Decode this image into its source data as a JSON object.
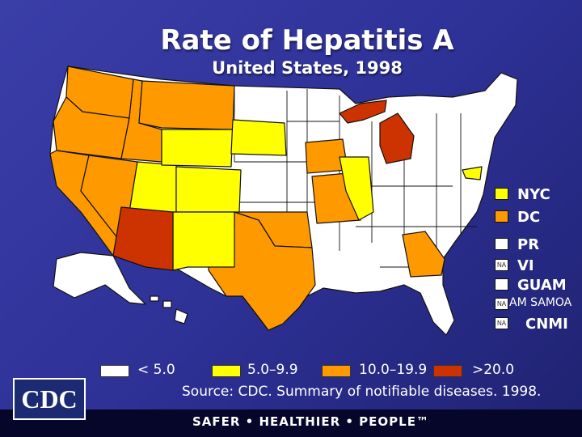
{
  "title": "Rate of Hepatitis A",
  "subtitle": "United States, 1998",
  "territories": [
    {
      "label": "NYC",
      "box_text": "",
      "color": "#ffff00"
    },
    {
      "label": "DC",
      "box_text": "",
      "color": "#ff9900"
    },
    {
      "label": "PR",
      "box_text": "",
      "color": "#ffffff"
    },
    {
      "label": "VI",
      "box_text": "NA",
      "color": "#ffffff"
    },
    {
      "label": "GUAM",
      "box_text": "",
      "color": "#ffffff"
    },
    {
      "label": "AM SAMOA",
      "box_text": "NA",
      "color": "#ffffff"
    },
    {
      "label": "CNMI",
      "box_text": "NA",
      "color": "#ffffff"
    }
  ],
  "legend": [
    {
      "label": "< 5.0",
      "color": "#ffffff"
    },
    {
      "label": "5.0–9.9",
      "color": "#ffff00"
    },
    {
      "label": "10.0–19.9",
      "color": "#ff9900"
    },
    {
      "label": ">20.0",
      "color": "#cc3300"
    }
  ],
  "source": "Source:  CDC. Summary of notifiable diseases. 1998.",
  "logo_text": "CDC",
  "tagline": "SAFER • HEALTHIER • PEOPLE™",
  "colors": {
    "background": "#2e3196",
    "white": "#ffffff",
    "yellow": "#ffff00",
    "orange": "#ff9900",
    "red": "#cc3300"
  },
  "state_categories": {
    "WA": "10.0–19.9",
    "OR": "10.0–19.9",
    "CA": "10.0–19.9",
    "ID": "10.0–19.9",
    "NV": "10.0–19.9",
    "MT": "10.0–19.9",
    "TX": "10.0–19.9",
    "OK": "10.0–19.9",
    "MO": "10.0–19.9",
    "IA": "10.0–19.9",
    "GA": "10.0–19.9",
    "AZ": ">20.0",
    "MI": ">20.0",
    "UT": "5.0–9.9",
    "WY": "5.0–9.9",
    "CO": "5.0–9.9",
    "NM": "5.0–9.9",
    "SD": "5.0–9.9",
    "IL": "5.0–9.9",
    "MD": "5.0–9.9",
    "other": "< 5.0"
  }
}
